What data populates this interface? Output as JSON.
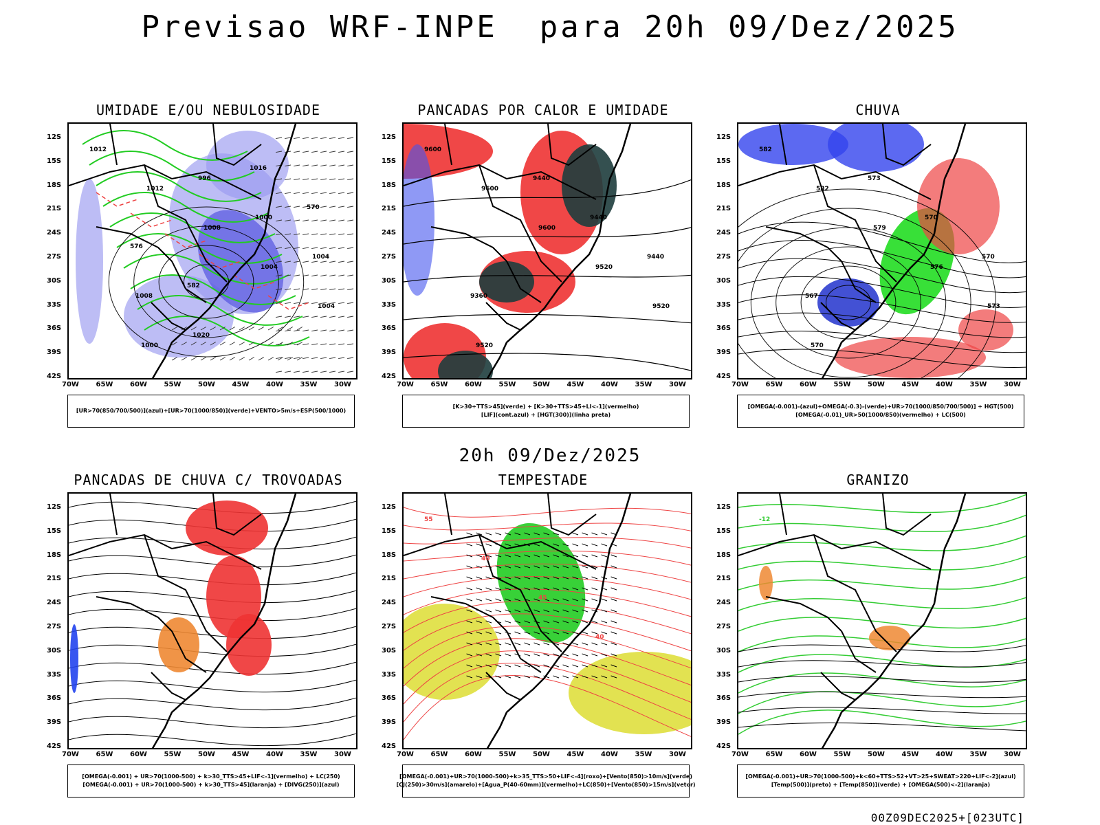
{
  "header": {
    "title": "Previsao WRF-INPE  para 20h 09/Dez/2025"
  },
  "mid_title": "20h 09/Dez/2025",
  "footer": "00Z09DEC2025+[023UTC]",
  "axes": {
    "lat_labels": [
      "12S",
      "15S",
      "18S",
      "21S",
      "24S",
      "27S",
      "30S",
      "33S",
      "36S",
      "39S",
      "42S"
    ],
    "lon_labels": [
      "70W",
      "65W",
      "60W",
      "55W",
      "50W",
      "45W",
      "40W",
      "35W",
      "30W"
    ]
  },
  "panels": [
    {
      "id": "umidade",
      "title": "UMIDADE E/OU NEBULOSIDADE",
      "legend": [
        "[UR>70(850/700/500)](azul)+[UR>70(1000/850)](verde)+VENTO>5m/s+ESP(500/1000)"
      ],
      "labels": [
        "1012",
        "1012",
        "1008",
        "1004",
        "1004",
        "1000",
        "996",
        "1000",
        "1004",
        "1008",
        "1020",
        "1016",
        "570",
        "576",
        "582"
      ]
    },
    {
      "id": "pancadas-calor",
      "title": "PANCADAS POR CALOR E UMIDADE",
      "legend": [
        "[K>30+TTS>45](verde) + [K>30+TTS>45+LI<-1](vermelho)",
        "[LIF](cont.azul) + [HGT(300)](linha preta)"
      ],
      "labels": [
        "9600",
        "9600",
        "9600",
        "9520",
        "9520",
        "9520",
        "9440",
        "9440",
        "9440",
        "9360"
      ]
    },
    {
      "id": "chuva",
      "title": "CHUVA",
      "legend": [
        "[OMEGA(-0.001)-(azul)+OMEGA(-0.3)-(verde)+UR>70(1000/850/700/500)] + HGT(500)",
        "[OMEGA(-0.01)_UR>50(1000/850)(vermelho) + LC(500)"
      ],
      "labels": [
        "582",
        "582",
        "579",
        "576",
        "573",
        "570",
        "573",
        "570",
        "570",
        "567"
      ]
    },
    {
      "id": "pancadas-trovoadas",
      "title": "PANCADAS DE CHUVA C/ TROVOADAS",
      "legend": [
        "[OMEGA(-0.001) + UR>70(1000-500) + k>30_TTS>45+LIF<-1](vermelho) + LC(250)",
        "[OMEGA(-0.001) + UR>70(1000-500) + k>30_TTS>45](laranja) + [DIVG(250)](azul)"
      ],
      "labels": []
    },
    {
      "id": "tempestade",
      "title": "TEMPESTADE",
      "legend": [
        "[OMEGA(-0.001)+UR>70(1000-500)+k>35_TTS>50+LIF<-4](roxo)+[Vento(850)>10m/s](verde)",
        "[CJ(250)>30m/s](amarelo)+[Agua_P(40-60mm)](vermelho)+LC(850)+[Vento(850)>15m/s](vetor)"
      ],
      "labels": [
        "55",
        "40",
        "45",
        "40"
      ]
    },
    {
      "id": "granizo",
      "title": "GRANIZO",
      "legend": [
        "[OMEGA(-0.001)+UR>70(1000-500)+k<60+TTS>52+VT>25+SWEAT>220+LIF<-2](azul)",
        "[Temp(500)](preto) + [Temp(850)](verde) + [OMEGA(500)<-2](laranja)"
      ],
      "labels": [
        "-12"
      ]
    }
  ]
}
